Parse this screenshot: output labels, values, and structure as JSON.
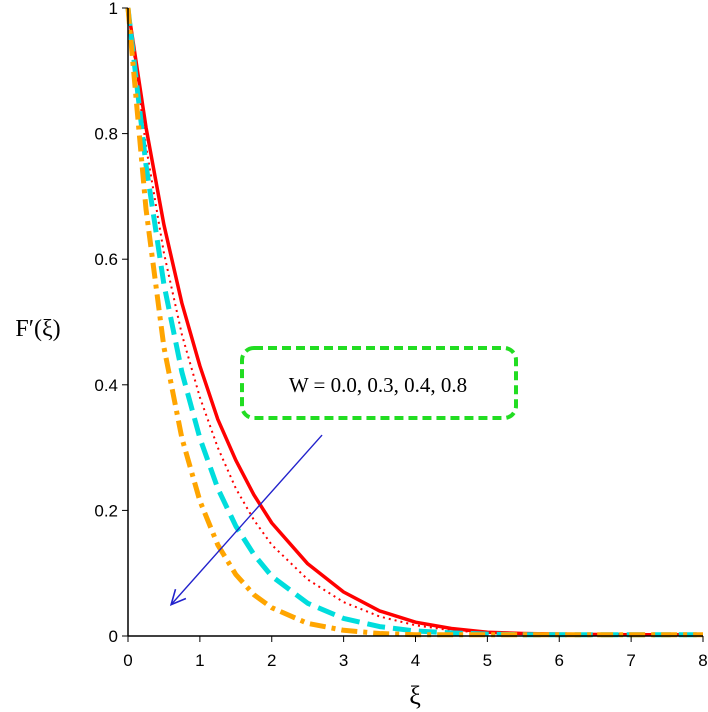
{
  "chart_data": {
    "type": "line",
    "xlabel": "ξ",
    "ylabel": "F′(ξ)",
    "xlim": [
      0,
      8
    ],
    "ylim": [
      0,
      1
    ],
    "x_ticks": [
      "0",
      "1",
      "2",
      "3",
      "4",
      "5",
      "6",
      "7",
      "8"
    ],
    "y_ticks": [
      "0",
      "0.2",
      "0.4",
      "0.6",
      "0.8",
      "1"
    ],
    "grid": false,
    "legend": "none",
    "annotation": {
      "text": "W = 0.0, 0.3, 0.4, 0.8",
      "box_color": "#22dd22",
      "arrow_color": "#2222cc",
      "arrow_from": [
        2.7,
        0.32
      ],
      "arrow_to": [
        0.6,
        0.05
      ]
    },
    "series": [
      {
        "style": "solid",
        "color": "#ff0000",
        "x": [
          0,
          0.25,
          0.5,
          0.75,
          1,
          1.25,
          1.5,
          1.75,
          2,
          2.5,
          3,
          3.5,
          4,
          4.5,
          5,
          5.5,
          6,
          7,
          8
        ],
        "y": [
          1,
          0.81,
          0.655,
          0.53,
          0.43,
          0.345,
          0.28,
          0.225,
          0.18,
          0.115,
          0.07,
          0.04,
          0.022,
          0.012,
          0.006,
          0.004,
          0.003,
          0.002,
          0.002
        ]
      },
      {
        "style": "dotted",
        "color": "#ff0000",
        "x": [
          0,
          0.25,
          0.5,
          0.75,
          1,
          1.25,
          1.5,
          1.75,
          2,
          2.5,
          3,
          3.5,
          4,
          4.5,
          5,
          5.5,
          6,
          7,
          8
        ],
        "y": [
          1,
          0.78,
          0.61,
          0.48,
          0.38,
          0.3,
          0.235,
          0.185,
          0.145,
          0.09,
          0.054,
          0.031,
          0.017,
          0.009,
          0.005,
          0.003,
          0.002,
          0.002,
          0.002
        ]
      },
      {
        "style": "dashed",
        "color": "#00dddd",
        "x": [
          0,
          0.25,
          0.5,
          0.75,
          1,
          1.25,
          1.5,
          1.75,
          2,
          2.5,
          3,
          3.5,
          4,
          4.5,
          5,
          5.5,
          6,
          7,
          8
        ],
        "y": [
          1,
          0.75,
          0.56,
          0.42,
          0.315,
          0.235,
          0.175,
          0.13,
          0.095,
          0.052,
          0.028,
          0.015,
          0.008,
          0.005,
          0.003,
          0.002,
          0.002,
          0.002,
          0.002
        ]
      },
      {
        "style": "dashdot",
        "color": "#ffa500",
        "x": [
          0,
          0.25,
          0.5,
          0.75,
          1,
          1.25,
          1.5,
          1.75,
          2,
          2.5,
          3,
          3.5,
          4,
          4.5,
          5,
          5.5,
          6,
          7,
          8
        ],
        "y": [
          1,
          0.68,
          0.46,
          0.315,
          0.215,
          0.145,
          0.098,
          0.066,
          0.045,
          0.02,
          0.009,
          0.004,
          0.002,
          0.002,
          0.002,
          0.002,
          0.002,
          0.002,
          0.002
        ]
      }
    ]
  }
}
